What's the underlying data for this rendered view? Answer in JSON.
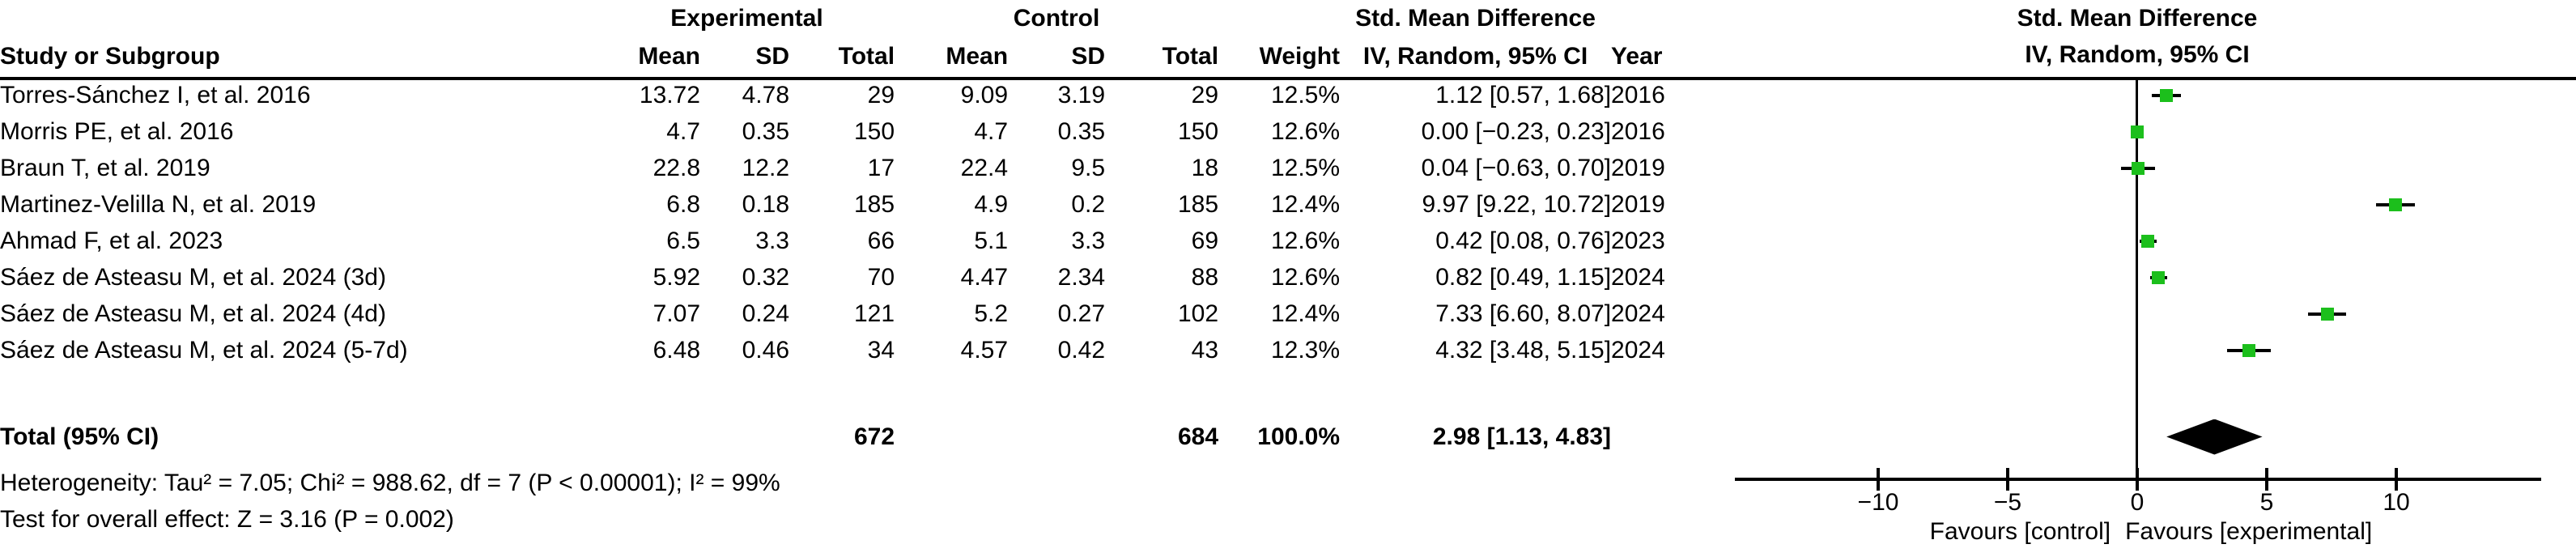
{
  "table": {
    "headers": {
      "group_experimental": "Experimental",
      "group_control": "Control",
      "smd": "Std. Mean Difference",
      "study": "Study or Subgroup",
      "mean": "Mean",
      "sd": "SD",
      "total": "Total",
      "weight": "Weight",
      "iv_random": "IV, Random, 95% CI",
      "year": "Year"
    },
    "rows": [
      {
        "study": "Torres-Sánchez I, et al. 2016",
        "exp_mean": "13.72",
        "exp_sd": "4.78",
        "exp_total": "29",
        "ctrl_mean": "9.09",
        "ctrl_sd": "3.19",
        "ctrl_total": "29",
        "weight": "12.5%",
        "ci": "1.12 [0.57, 1.68]",
        "year": "2016"
      },
      {
        "study": "Morris PE, et al. 2016",
        "exp_mean": "4.7",
        "exp_sd": "0.35",
        "exp_total": "150",
        "ctrl_mean": "4.7",
        "ctrl_sd": "0.35",
        "ctrl_total": "150",
        "weight": "12.6%",
        "ci": "0.00 [−0.23, 0.23]",
        "year": "2016"
      },
      {
        "study": "Braun T, et al. 2019",
        "exp_mean": "22.8",
        "exp_sd": "12.2",
        "exp_total": "17",
        "ctrl_mean": "22.4",
        "ctrl_sd": "9.5",
        "ctrl_total": "18",
        "weight": "12.5%",
        "ci": "0.04 [−0.63, 0.70]",
        "year": "2019"
      },
      {
        "study": "Martinez-Velilla N, et al. 2019",
        "exp_mean": "6.8",
        "exp_sd": "0.18",
        "exp_total": "185",
        "ctrl_mean": "4.9",
        "ctrl_sd": "0.2",
        "ctrl_total": "185",
        "weight": "12.4%",
        "ci": "9.97 [9.22, 10.72]",
        "year": "2019"
      },
      {
        "study": "Ahmad F, et al. 2023",
        "exp_mean": "6.5",
        "exp_sd": "3.3",
        "exp_total": "66",
        "ctrl_mean": "5.1",
        "ctrl_sd": "3.3",
        "ctrl_total": "69",
        "weight": "12.6%",
        "ci": "0.42 [0.08, 0.76]",
        "year": "2023"
      },
      {
        "study": "Sáez de Asteasu M, et al. 2024 (3d)",
        "exp_mean": "5.92",
        "exp_sd": "0.32",
        "exp_total": "70",
        "ctrl_mean": "4.47",
        "ctrl_sd": "2.34",
        "ctrl_total": "88",
        "weight": "12.6%",
        "ci": "0.82 [0.49, 1.15]",
        "year": "2024"
      },
      {
        "study": "Sáez de Asteasu M, et al. 2024 (4d)",
        "exp_mean": "7.07",
        "exp_sd": "0.24",
        "exp_total": "121",
        "ctrl_mean": "5.2",
        "ctrl_sd": "0.27",
        "ctrl_total": "102",
        "weight": "12.4%",
        "ci": "7.33 [6.60, 8.07]",
        "year": "2024"
      },
      {
        "study": "Sáez de Asteasu M, et al. 2024 (5-7d)",
        "exp_mean": "6.48",
        "exp_sd": "0.46",
        "exp_total": "34",
        "ctrl_mean": "4.57",
        "ctrl_sd": "0.42",
        "ctrl_total": "43",
        "weight": "12.3%",
        "ci": "4.32 [3.48, 5.15]",
        "year": "2024"
      }
    ],
    "total_row": {
      "label": "Total (95% CI)",
      "exp_total": "672",
      "ctrl_total": "684",
      "weight": "100.0%",
      "ci": "2.98 [1.13, 4.83]"
    },
    "heterogeneity": "Heterogeneity: Tau² = 7.05; Chi² = 988.62, df = 7 (P < 0.00001); I² = 99%",
    "overall_effect": "Test for overall effect: Z = 3.16 (P = 0.002)"
  },
  "plot": {
    "header_line1": "Std. Mean Difference",
    "header_line2": "IV, Random, 95% CI",
    "axis_ticks": [
      "−10",
      "−5",
      "0",
      "5",
      "10"
    ],
    "favours_left": "Favours [control]",
    "favours_right": "Favours [experimental]",
    "marker_color": "#1CBF1C",
    "diamond_color": "#000000"
  },
  "chart_data": {
    "type": "scatter",
    "subtype": "forest_plot",
    "title": "Std. Mean Difference",
    "effect_measure": "IV, Random, 95% CI",
    "x_ticks": [
      -10,
      -5,
      0,
      5,
      10
    ],
    "xlim": [
      -15.5,
      15.6
    ],
    "xlabel_left": "Favours [control]",
    "xlabel_right": "Favours [experimental]",
    "studies": [
      {
        "name": "Torres-Sánchez I, et al. 2016",
        "year": 2016,
        "exp": {
          "mean": 13.72,
          "sd": 4.78,
          "total": 29
        },
        "ctrl": {
          "mean": 9.09,
          "sd": 3.19,
          "total": 29
        },
        "weight_pct": 12.5,
        "smd": 1.12,
        "ci": [
          0.57,
          1.68
        ]
      },
      {
        "name": "Morris PE, et al. 2016",
        "year": 2016,
        "exp": {
          "mean": 4.7,
          "sd": 0.35,
          "total": 150
        },
        "ctrl": {
          "mean": 4.7,
          "sd": 0.35,
          "total": 150
        },
        "weight_pct": 12.6,
        "smd": 0.0,
        "ci": [
          -0.23,
          0.23
        ]
      },
      {
        "name": "Braun T, et al. 2019",
        "year": 2019,
        "exp": {
          "mean": 22.8,
          "sd": 12.2,
          "total": 17
        },
        "ctrl": {
          "mean": 22.4,
          "sd": 9.5,
          "total": 18
        },
        "weight_pct": 12.5,
        "smd": 0.04,
        "ci": [
          -0.63,
          0.7
        ]
      },
      {
        "name": "Martinez-Velilla N, et al. 2019",
        "year": 2019,
        "exp": {
          "mean": 6.8,
          "sd": 0.18,
          "total": 185
        },
        "ctrl": {
          "mean": 4.9,
          "sd": 0.2,
          "total": 185
        },
        "weight_pct": 12.4,
        "smd": 9.97,
        "ci": [
          9.22,
          10.72
        ]
      },
      {
        "name": "Ahmad F, et al. 2023",
        "year": 2023,
        "exp": {
          "mean": 6.5,
          "sd": 3.3,
          "total": 66
        },
        "ctrl": {
          "mean": 5.1,
          "sd": 3.3,
          "total": 69
        },
        "weight_pct": 12.6,
        "smd": 0.42,
        "ci": [
          0.08,
          0.76
        ]
      },
      {
        "name": "Sáez de Asteasu M, et al. 2024 (3d)",
        "year": 2024,
        "exp": {
          "mean": 5.92,
          "sd": 0.32,
          "total": 70
        },
        "ctrl": {
          "mean": 4.47,
          "sd": 2.34,
          "total": 88
        },
        "weight_pct": 12.6,
        "smd": 0.82,
        "ci": [
          0.49,
          1.15
        ]
      },
      {
        "name": "Sáez de Asteasu M, et al. 2024 (4d)",
        "year": 2024,
        "exp": {
          "mean": 7.07,
          "sd": 0.24,
          "total": 121
        },
        "ctrl": {
          "mean": 5.2,
          "sd": 0.27,
          "total": 102
        },
        "weight_pct": 12.4,
        "smd": 7.33,
        "ci": [
          6.6,
          8.07
        ]
      },
      {
        "name": "Sáez de Asteasu M, et al. 2024 (5-7d)",
        "year": 2024,
        "exp": {
          "mean": 6.48,
          "sd": 0.46,
          "total": 34
        },
        "ctrl": {
          "mean": 4.57,
          "sd": 0.42,
          "total": 43
        },
        "weight_pct": 12.3,
        "smd": 4.32,
        "ci": [
          3.48,
          5.15
        ]
      }
    ],
    "total": {
      "label": "Total (95% CI)",
      "exp_total": 672,
      "ctrl_total": 684,
      "weight_pct": 100.0,
      "smd": 2.98,
      "ci": [
        1.13,
        4.83
      ]
    },
    "heterogeneity": {
      "tau2": 7.05,
      "chi2": 988.62,
      "df": 7,
      "p": "< 0.00001",
      "i2": "99%"
    },
    "overall_effect": {
      "z": 3.16,
      "p": "= 0.002"
    }
  }
}
